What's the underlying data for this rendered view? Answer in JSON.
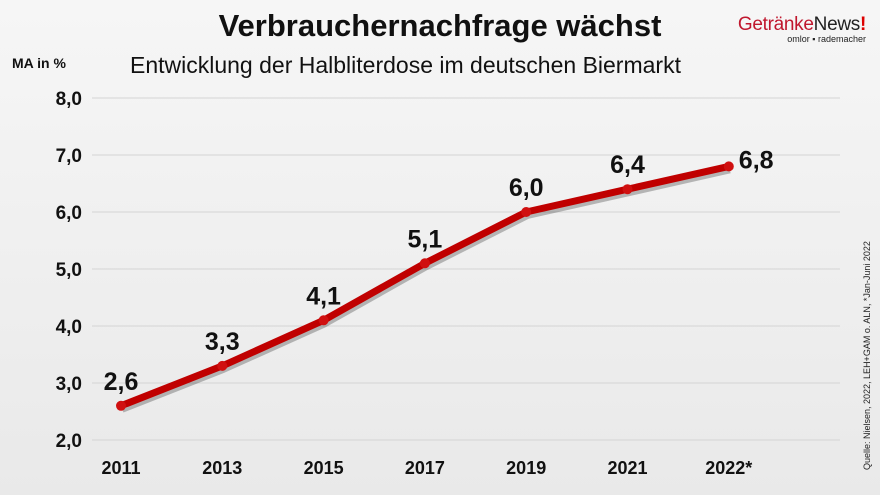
{
  "chart_data": {
    "type": "line",
    "title": "Verbrauchernachfrage wächst",
    "subtitle": "Entwicklung der Halbliterdose im deutschen Biermarkt",
    "ylabel": "MA in %",
    "xlabel": "",
    "categories": [
      "2011",
      "2013",
      "2015",
      "2017",
      "2019",
      "2021",
      "2022*"
    ],
    "values": [
      2.6,
      3.3,
      4.1,
      5.1,
      6.0,
      6.4,
      6.8
    ],
    "data_labels": [
      "2,6",
      "3,3",
      "4,1",
      "5,1",
      "6,0",
      "6,4",
      "6,8"
    ],
    "ylim": [
      2.0,
      8.0
    ],
    "yticks": [
      "2,0",
      "3,0",
      "4,0",
      "5,0",
      "6,0",
      "7,0",
      "8,0"
    ],
    "grid": true,
    "line_color": "#c00000"
  },
  "logo": {
    "brand_a": "Getränke",
    "brand_b": "News",
    "brand_c": "!",
    "tagline": "omlor ▪ rademacher"
  },
  "source": "Quelle: Nielsen, 2022, LEH+GAM o. ALN, *Jan-Juni 2022"
}
